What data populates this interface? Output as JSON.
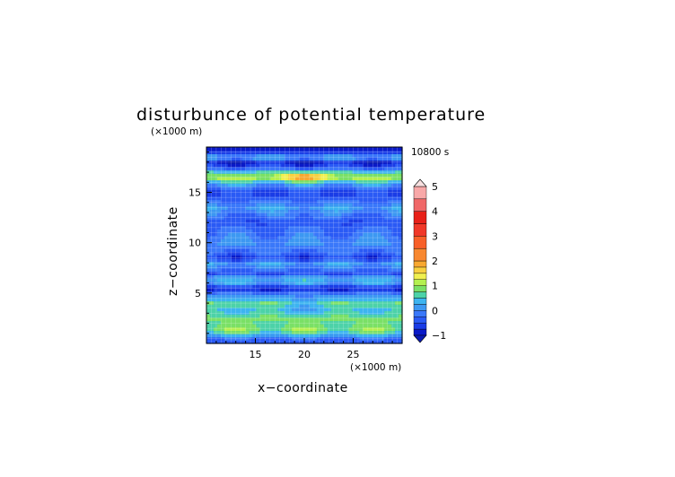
{
  "chart_data": {
    "type": "heatmap",
    "title": "disturbunce of potential temperature",
    "time_label": "10800 s",
    "xlabel": "x−coordinate",
    "ylabel": "z−coordinate",
    "x_unit": "(×1000 m)",
    "y_unit": "(×1000 m)",
    "xlim": [
      10,
      30
    ],
    "ylim": [
      0,
      19.5
    ],
    "x_ticks": [
      "15",
      "20",
      "25"
    ],
    "y_ticks": [
      "5",
      "10",
      "15"
    ],
    "x_tick_values": [
      15,
      20,
      25
    ],
    "y_tick_values": [
      5,
      10,
      15
    ],
    "grid": true,
    "colorbar": {
      "ticks": [
        "−1",
        "0",
        "1",
        "2",
        "3",
        "4",
        "5"
      ],
      "tick_values": [
        -1,
        0,
        1,
        2,
        3,
        4,
        5
      ],
      "levels": [
        -1,
        -0.75,
        -0.5,
        -0.25,
        0,
        0.25,
        0.5,
        0.75,
        1,
        1.25,
        1.5,
        1.75,
        2,
        2.5,
        3,
        3.5,
        4,
        4.5,
        5
      ],
      "colors": [
        "#0a1ac8",
        "#1a3ce6",
        "#2a5af5",
        "#3a78fa",
        "#3c98f2",
        "#3cb4f0",
        "#4cd2a8",
        "#7ae066",
        "#b4f050",
        "#f0f050",
        "#f8d040",
        "#f8a830",
        "#f88830",
        "#f86028",
        "#f03828",
        "#e82018",
        "#f06868",
        "#f8a8a8"
      ],
      "under_color": "#0a1ab4",
      "over_color": "#f8e0e0"
    },
    "z_profile_levels": [
      {
        "z": 0.0,
        "v": -0.45
      },
      {
        "z": 0.5,
        "v": -0.3
      },
      {
        "z": 1.0,
        "v": 0.55
      },
      {
        "z": 1.5,
        "v": 0.9
      },
      {
        "z": 2.0,
        "v": 0.7
      },
      {
        "z": 2.5,
        "v": 0.85
      },
      {
        "z": 3.0,
        "v": 0.5
      },
      {
        "z": 3.5,
        "v": 0.3
      },
      {
        "z": 4.0,
        "v": 0.65
      },
      {
        "z": 4.5,
        "v": 0.2
      },
      {
        "z": 5.0,
        "v": -0.2
      },
      {
        "z": 5.5,
        "v": -0.85
      },
      {
        "z": 6.0,
        "v": 0.1
      },
      {
        "z": 6.5,
        "v": 0.35
      },
      {
        "z": 7.0,
        "v": -0.5
      },
      {
        "z": 7.5,
        "v": -0.1
      },
      {
        "z": 8.0,
        "v": 0.15
      },
      {
        "z": 8.5,
        "v": -0.6
      },
      {
        "z": 9.0,
        "v": -0.3
      },
      {
        "z": 10.0,
        "v": 0.05
      },
      {
        "z": 11.0,
        "v": -0.2
      },
      {
        "z": 12.0,
        "v": -0.35
      },
      {
        "z": 13.0,
        "v": 0.0
      },
      {
        "z": 13.5,
        "v": 0.2
      },
      {
        "z": 14.0,
        "v": -0.15
      },
      {
        "z": 14.5,
        "v": -0.4
      },
      {
        "z": 15.0,
        "v": -0.6
      },
      {
        "z": 15.5,
        "v": -0.2
      },
      {
        "z": 16.0,
        "v": 0.3
      },
      {
        "z": 16.5,
        "v": 1.2
      },
      {
        "z": 17.0,
        "v": 0.6
      },
      {
        "z": 17.5,
        "v": -0.4
      },
      {
        "z": 18.0,
        "v": -0.9
      },
      {
        "z": 18.5,
        "v": 0.3
      },
      {
        "z": 19.0,
        "v": -0.6
      },
      {
        "z": 19.5,
        "v": -0.9
      }
    ]
  }
}
